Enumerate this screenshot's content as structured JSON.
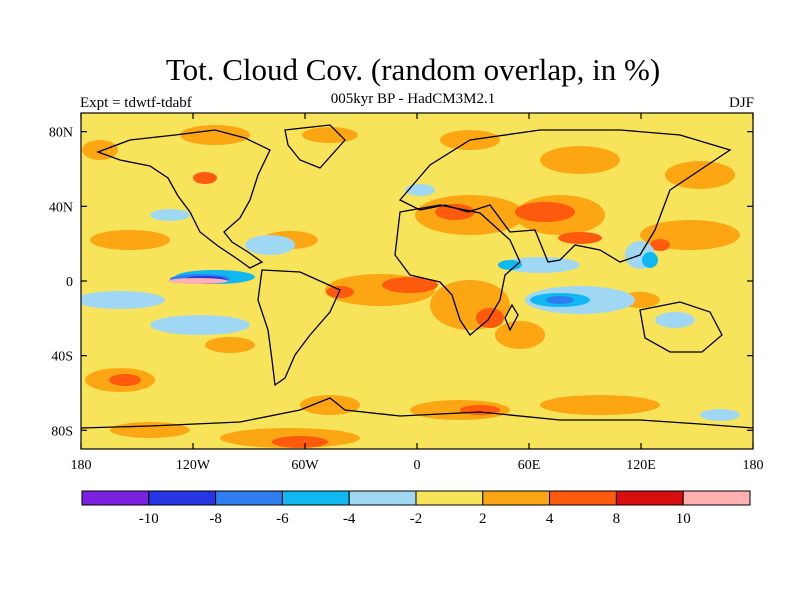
{
  "title": "Tot. Cloud Cov. (random overlap, in %)",
  "subtitle": "005kyr BP - HadCM3M2.1",
  "left_label": "Expt = tdwtf-tdabf",
  "right_label": "DJF",
  "map": {
    "lon_range": [
      -180,
      180
    ],
    "lat_range": [
      -90,
      90
    ],
    "background_class_color": "#f8e45a",
    "x_ticks": [
      {
        "value": -180,
        "label": "180"
      },
      {
        "value": -120,
        "label": "120W"
      },
      {
        "value": -60,
        "label": "60W"
      },
      {
        "value": 0,
        "label": "0"
      },
      {
        "value": 60,
        "label": "60E"
      },
      {
        "value": 120,
        "label": "120E"
      },
      {
        "value": 180,
        "label": "180"
      }
    ],
    "y_ticks": [
      {
        "value": 80,
        "label": "80N"
      },
      {
        "value": 40,
        "label": "40N"
      },
      {
        "value": 0,
        "label": "0"
      },
      {
        "value": -40,
        "label": "40S"
      },
      {
        "value": -80,
        "label": "80S"
      }
    ]
  },
  "colorbar": {
    "colors": [
      "#7a22e0",
      "#2636e4",
      "#2e7ef0",
      "#10b8f2",
      "#a0d8f4",
      "#f8e45a",
      "#fca614",
      "#fe5a0e",
      "#d80e0e",
      "#ffb0b0"
    ],
    "labels": [
      "-10",
      "-8",
      "-6",
      "-4",
      "-2",
      "2",
      "4",
      "8",
      "10"
    ]
  }
}
